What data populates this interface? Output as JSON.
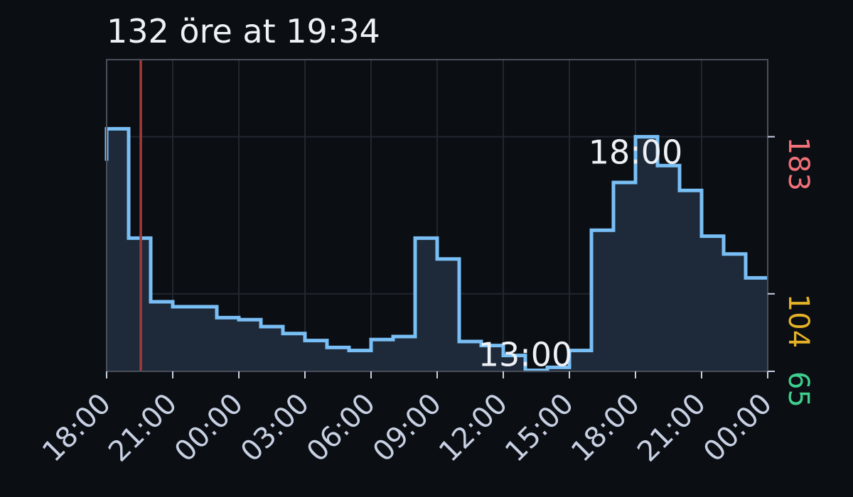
{
  "chart_data": {
    "type": "line",
    "step": true,
    "title": "132 öre at 19:34",
    "x_tick_labels": [
      "18:00",
      "21:00",
      "00:00",
      "03:00",
      "06:00",
      "09:00",
      "12:00",
      "15:00",
      "18:00",
      "21:00",
      "00:00"
    ],
    "x_unit": "hours since 18:00 on day 1",
    "x_range": [
      0,
      30
    ],
    "ylim": [
      65,
      187
    ],
    "y_ticks": [
      {
        "value": 183,
        "label": "183",
        "color": "#f07178"
      },
      {
        "value": 104,
        "label": "104",
        "color": "#e5b226"
      },
      {
        "value": 65,
        "label": "65",
        "color": "#3ecf8e"
      }
    ],
    "series": [
      {
        "color": "#79bff5",
        "fill": "#1e2a3a",
        "values": [
          187,
          132,
          100,
          97.5,
          97.5,
          92,
          91,
          87.5,
          84,
          80.5,
          77,
          75.5,
          81,
          82.5,
          132,
          121.5,
          80,
          78,
          73,
          65.5,
          67,
          75.5,
          136,
          160,
          183,
          168.5,
          156,
          133,
          124,
          112
        ]
      }
    ],
    "current_marker": {
      "x": 1.55,
      "color": "#a33a3a"
    },
    "annotations": [
      {
        "text": "18:00",
        "x": 24,
        "y": 183
      },
      {
        "text": "13:00",
        "x": 19,
        "y": 65.5
      }
    ],
    "grid": true
  }
}
